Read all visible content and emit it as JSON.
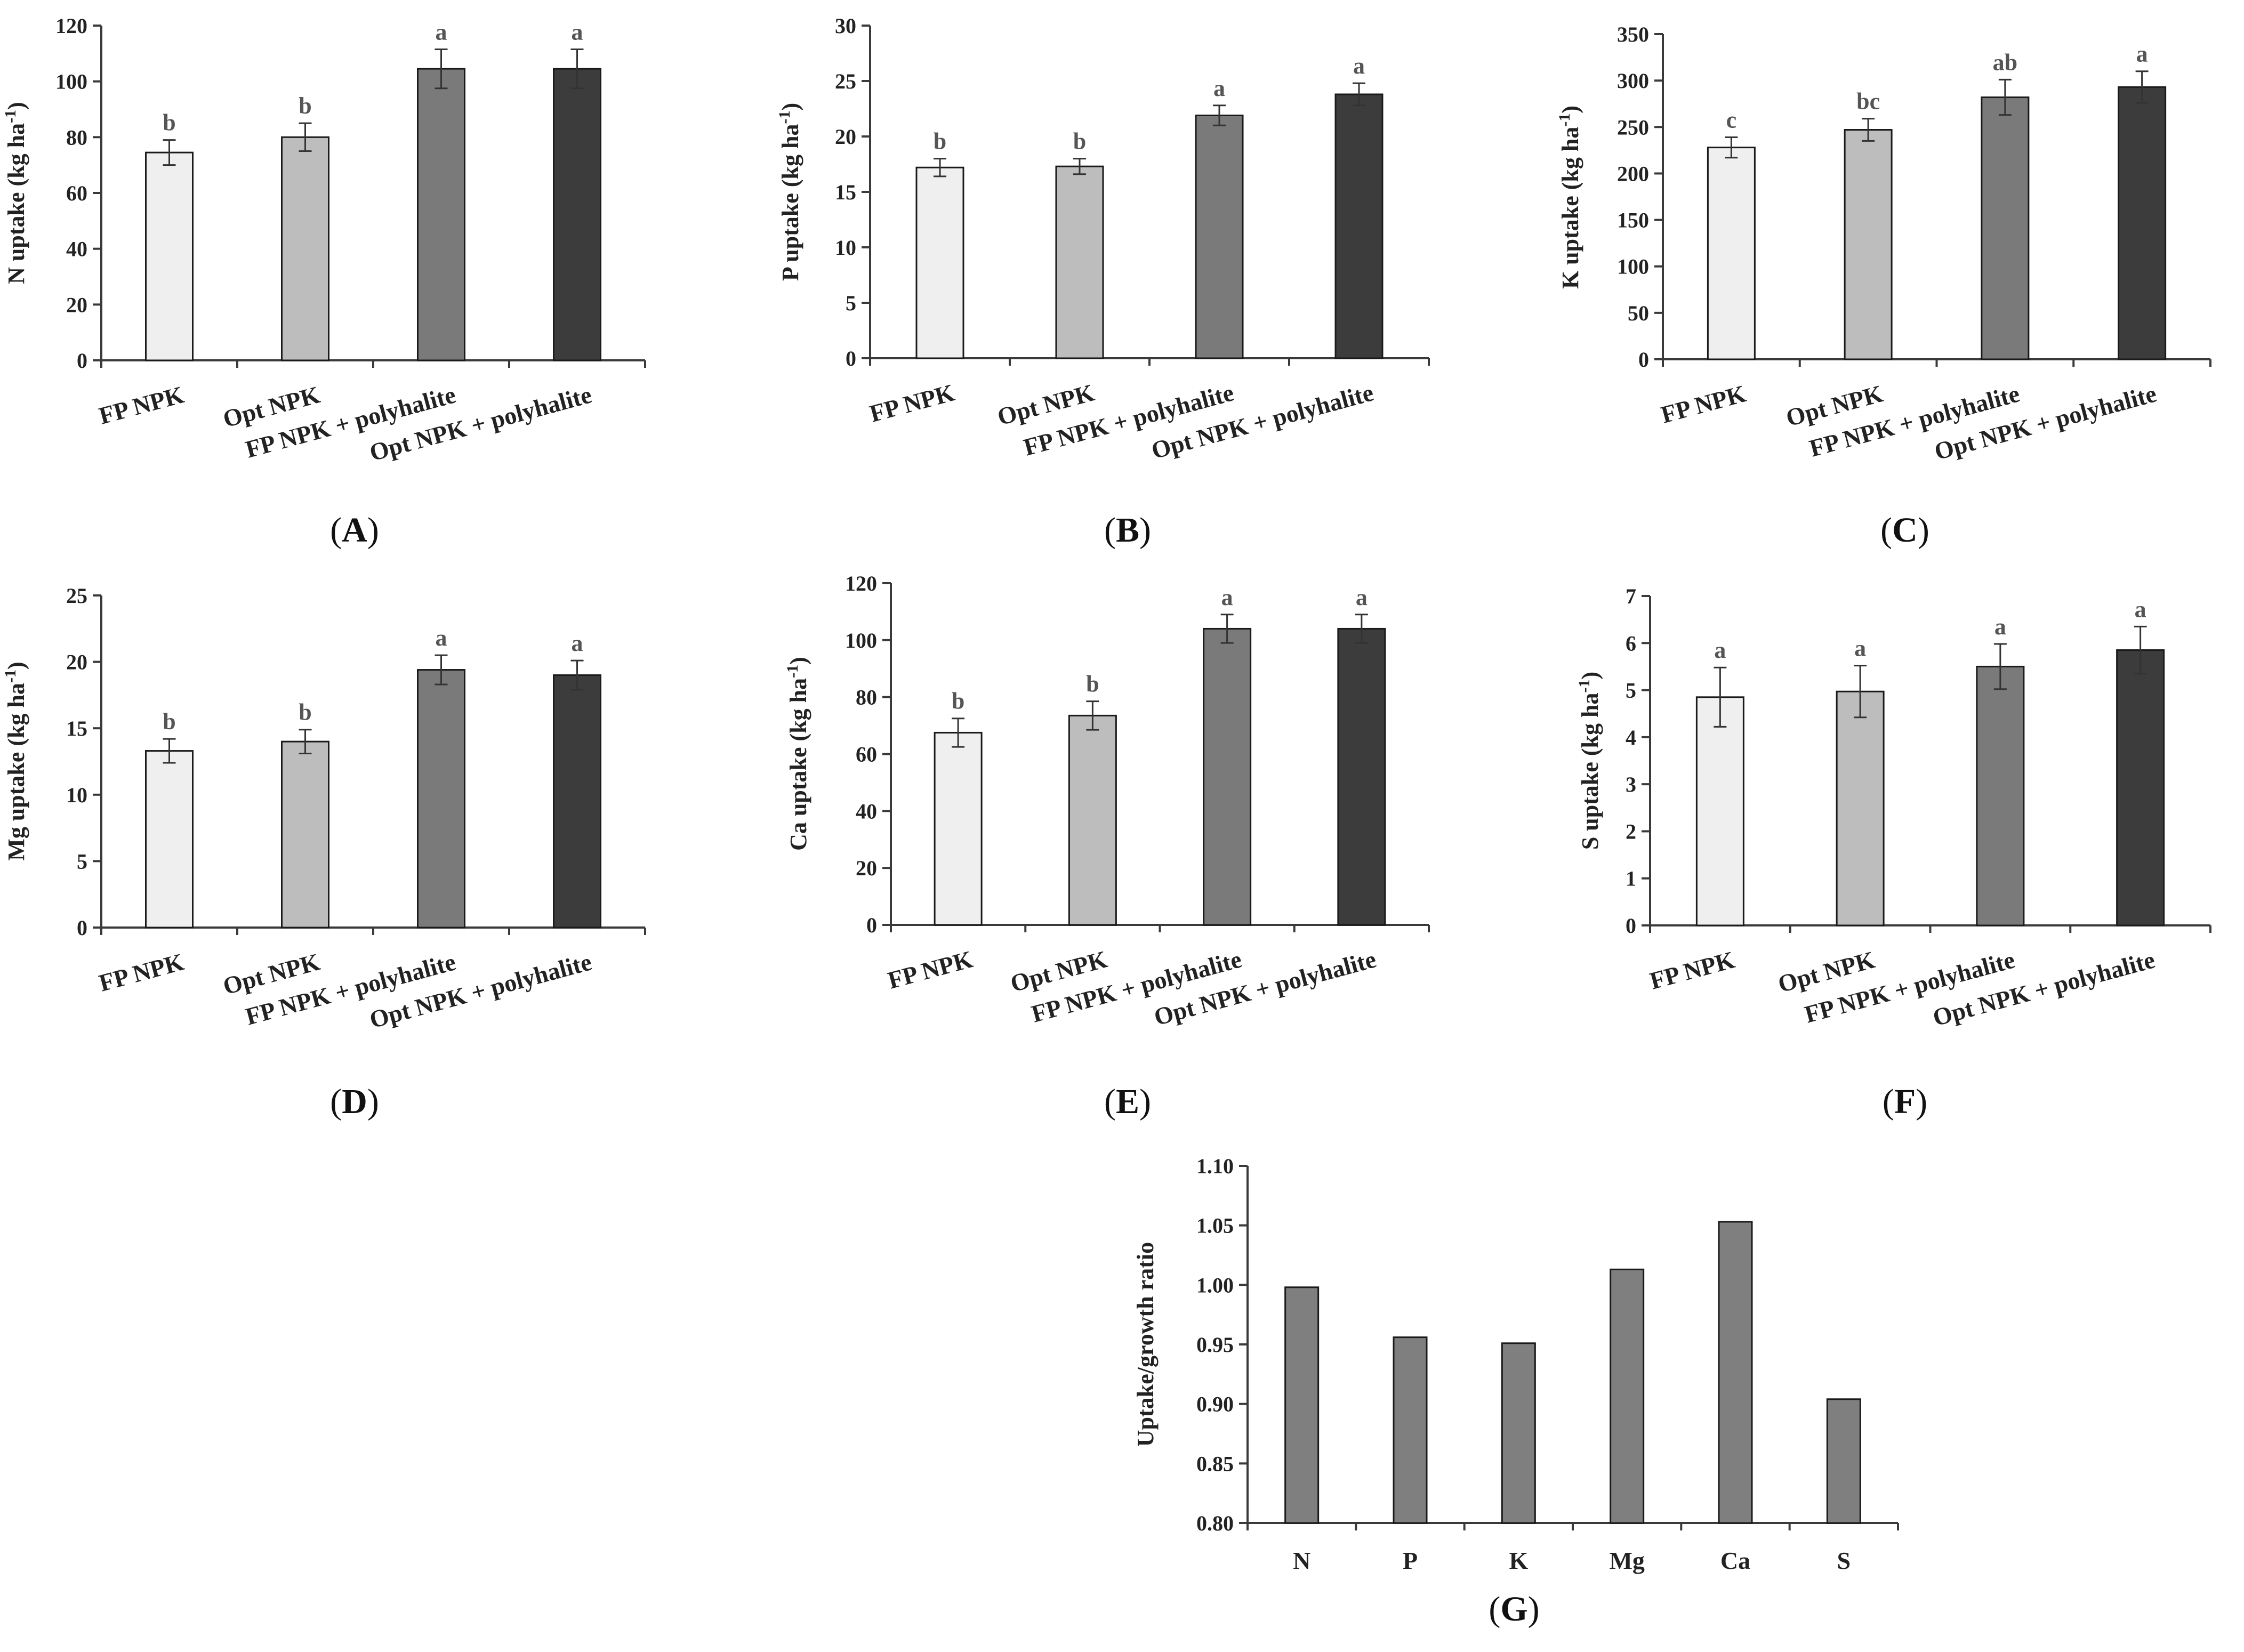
{
  "colors": {
    "axis": "#3a3a3a",
    "bar_edge": "#1a1a1a",
    "fp_npk": "#efefef",
    "opt_npk": "#bdbdbd",
    "fp_poly": "#7a7a7a",
    "opt_poly": "#3c3c3c",
    "ratio_bar": "#7f7f7f",
    "sig_text": "#555555"
  },
  "chart_data": [
    {
      "id": "A",
      "type": "bar",
      "panel_label": "A",
      "ylabel_main": "N uptake (kg ha",
      "ylabel_sup": "-1",
      "ylabel_end": ")",
      "ylim": [
        0,
        120
      ],
      "yticks": [
        0,
        20,
        40,
        60,
        80,
        100,
        120
      ],
      "categories": [
        "FP NPK",
        "Opt NPK",
        "FP NPK + polyhalite",
        "Opt NPK + polyhalite"
      ],
      "values": [
        74.5,
        80,
        104.5,
        104.5
      ],
      "errors": [
        4.5,
        5,
        7,
        7
      ],
      "letters": [
        "b",
        "b",
        "a",
        "a"
      ],
      "bar_colors": [
        "#efefef",
        "#bdbdbd",
        "#7a7a7a",
        "#3c3c3c"
      ]
    },
    {
      "id": "B",
      "type": "bar",
      "panel_label": "B",
      "ylabel_main": "P uptake (kg ha",
      "ylabel_sup": "-1",
      "ylabel_end": ")",
      "ylim": [
        0,
        30
      ],
      "yticks": [
        0,
        5,
        10,
        15,
        20,
        25,
        30
      ],
      "categories": [
        "FP NPK",
        "Opt NPK",
        "FP NPK + polyhalite",
        "Opt NPK + polyhalite"
      ],
      "values": [
        17.2,
        17.3,
        21.9,
        23.8
      ],
      "errors": [
        0.8,
        0.7,
        0.9,
        1.0
      ],
      "letters": [
        "b",
        "b",
        "a",
        "a"
      ],
      "bar_colors": [
        "#efefef",
        "#bdbdbd",
        "#7a7a7a",
        "#3c3c3c"
      ]
    },
    {
      "id": "C",
      "type": "bar",
      "panel_label": "C",
      "ylabel_main": "K uptake (kg ha",
      "ylabel_sup": "-1",
      "ylabel_end": ")",
      "ylim": [
        0,
        350
      ],
      "yticks": [
        0,
        50,
        100,
        150,
        200,
        250,
        300,
        350
      ],
      "categories": [
        "FP NPK",
        "Opt NPK",
        "FP NPK + polyhalite",
        "Opt NPK + polyhalite"
      ],
      "values": [
        228,
        247,
        282,
        293
      ],
      "errors": [
        11,
        12,
        19,
        17
      ],
      "letters": [
        "c",
        "bc",
        "ab",
        "a"
      ],
      "bar_colors": [
        "#efefef",
        "#bdbdbd",
        "#7a7a7a",
        "#3c3c3c"
      ]
    },
    {
      "id": "D",
      "type": "bar",
      "panel_label": "D",
      "ylabel_main": "Mg uptake (kg ha",
      "ylabel_sup": "-1",
      "ylabel_end": ")",
      "ylim": [
        0,
        25
      ],
      "yticks": [
        0,
        5,
        10,
        15,
        20,
        25
      ],
      "categories": [
        "FP NPK",
        "Opt NPK",
        "FP NPK + polyhalite",
        "Opt NPK + polyhalite"
      ],
      "values": [
        13.3,
        14.0,
        19.4,
        19.0
      ],
      "errors": [
        0.9,
        0.9,
        1.1,
        1.1
      ],
      "letters": [
        "b",
        "b",
        "a",
        "a"
      ],
      "bar_colors": [
        "#efefef",
        "#bdbdbd",
        "#7a7a7a",
        "#3c3c3c"
      ]
    },
    {
      "id": "E",
      "type": "bar",
      "panel_label": "E",
      "ylabel_main": "Ca uptake (kg ha",
      "ylabel_sup": "-1",
      "ylabel_end": ")",
      "ylim": [
        0,
        120
      ],
      "yticks": [
        0,
        20,
        40,
        60,
        80,
        100,
        120
      ],
      "categories": [
        "FP NPK",
        "Opt NPK",
        "FP NPK + polyhalite",
        "Opt NPK + polyhalite"
      ],
      "values": [
        67.5,
        73.5,
        104,
        104
      ],
      "errors": [
        5,
        5,
        5,
        5
      ],
      "letters": [
        "b",
        "b",
        "a",
        "a"
      ],
      "bar_colors": [
        "#efefef",
        "#bdbdbd",
        "#7a7a7a",
        "#3c3c3c"
      ]
    },
    {
      "id": "F",
      "type": "bar",
      "panel_label": "F",
      "ylabel_main": "S uptake (kg ha",
      "ylabel_sup": "-1",
      "ylabel_end": ")",
      "ylim": [
        0,
        7
      ],
      "yticks": [
        0,
        1,
        2,
        3,
        4,
        5,
        6,
        7
      ],
      "categories": [
        "FP NPK",
        "Opt NPK",
        "FP NPK + polyhalite",
        "Opt NPK + polyhalite"
      ],
      "values": [
        4.85,
        4.97,
        5.5,
        5.85
      ],
      "errors": [
        0.63,
        0.55,
        0.48,
        0.5
      ],
      "letters": [
        "a",
        "a",
        "a",
        "a"
      ],
      "bar_colors": [
        "#efefef",
        "#bdbdbd",
        "#7a7a7a",
        "#3c3c3c"
      ]
    },
    {
      "id": "G",
      "type": "bar",
      "panel_label": "G",
      "ylabel_main": "Uptake/growth ratio",
      "ylabel_sup": "",
      "ylabel_end": "",
      "ylim": [
        0.8,
        1.1
      ],
      "yticks": [
        "0.80",
        "0.85",
        "0.90",
        "0.95",
        "1.00",
        "1.05",
        "1.10"
      ],
      "categories": [
        "N",
        "P",
        "K",
        "Mg",
        "Ca",
        "S"
      ],
      "values": [
        0.998,
        0.956,
        0.951,
        1.013,
        1.053,
        0.904
      ],
      "bar_colors": [
        "#7f7f7f",
        "#7f7f7f",
        "#7f7f7f",
        "#7f7f7f",
        "#7f7f7f",
        "#7f7f7f"
      ]
    }
  ]
}
